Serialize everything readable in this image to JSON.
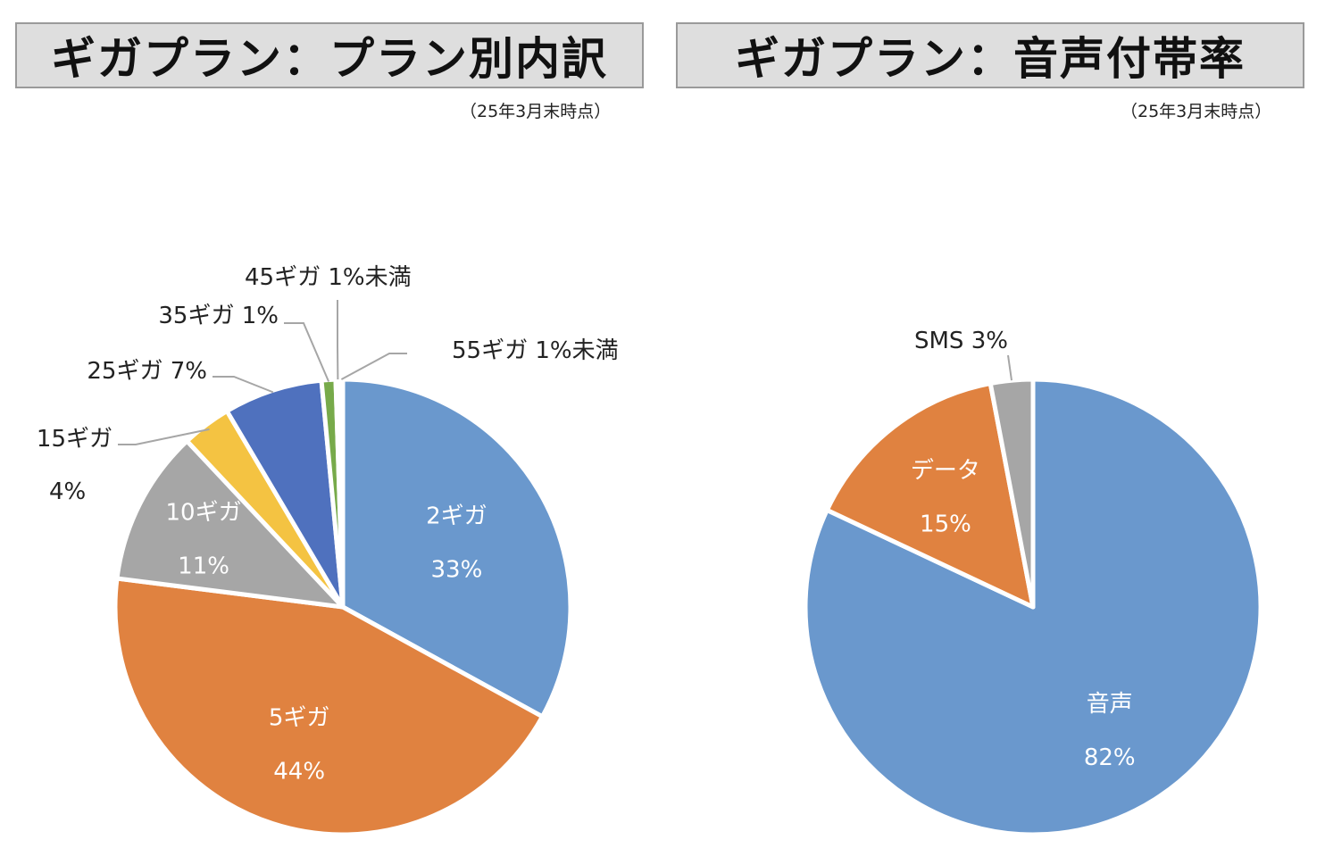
{
  "titles": {
    "left": "ギガプラン：プラン別内訳",
    "right": "ギガプラン：音声付帯率"
  },
  "asof": {
    "left": "（25年3月末時点）",
    "right": "（25年3月末時点）"
  },
  "chart_data": [
    {
      "type": "pie",
      "title": "ギガプラン：プラン別内訳",
      "subtitle": "（25年3月末時点）",
      "slices": [
        {
          "name": "2ギガ",
          "value": 33,
          "label": "33%",
          "color": "#6a98cd"
        },
        {
          "name": "5ギガ",
          "value": 44,
          "label": "44%",
          "color": "#e08240"
        },
        {
          "name": "10ギガ",
          "value": 11,
          "label": "11%",
          "color": "#a6a6a6"
        },
        {
          "name": "15ギガ",
          "value": 3.5,
          "label": "4%",
          "color": "#f4c342"
        },
        {
          "name": "25ギガ",
          "value": 7,
          "label": "7%",
          "color": "#4f71be"
        },
        {
          "name": "35ギガ",
          "value": 1,
          "label": "1%",
          "color": "#77aa4a"
        },
        {
          "name": "45ギガ",
          "value": 0.3,
          "label": "1%未満",
          "color": "#2a4f8a"
        },
        {
          "name": "55ギガ",
          "value": 0.2,
          "label": "1%未満",
          "color": "#9c5524"
        }
      ]
    },
    {
      "type": "pie",
      "title": "ギガプラン：音声付帯率",
      "subtitle": "（25年3月末時点）",
      "slices": [
        {
          "name": "音声",
          "value": 82,
          "label": "82%",
          "color": "#6a98cd"
        },
        {
          "name": "データ",
          "value": 15,
          "label": "15%",
          "color": "#e08240"
        },
        {
          "name": "SMS",
          "value": 3,
          "label": "3%",
          "color": "#a6a6a6"
        }
      ]
    }
  ]
}
